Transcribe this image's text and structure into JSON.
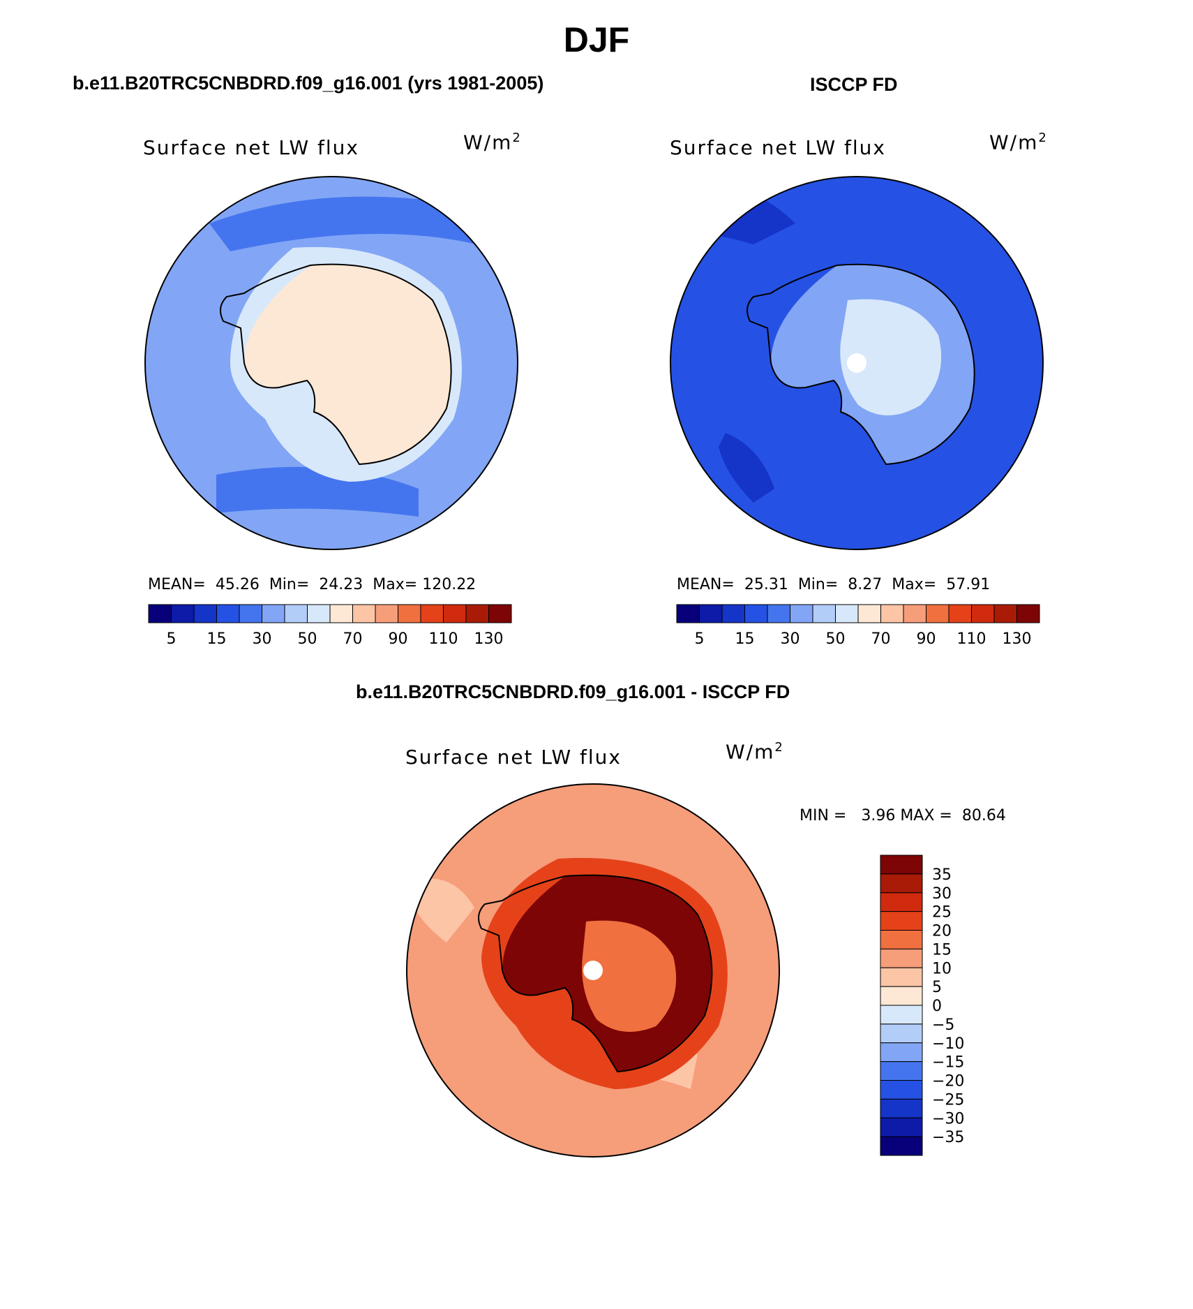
{
  "page_title": "DJF",
  "colors": {
    "seq_scale": [
      "#08007a",
      "#0d1ba8",
      "#1534c8",
      "#2552e4",
      "#4575ee",
      "#82a6f5",
      "#b3cdf9",
      "#d8e8fb",
      "#fde8d5",
      "#fbc5a6",
      "#f69d7a",
      "#f0703f",
      "#e5421a",
      "#d02a0f",
      "#aa1b07",
      "#7d0505"
    ],
    "diff_scale": [
      "#08007a",
      "#0d1ba8",
      "#1534c8",
      "#2552e4",
      "#4575ee",
      "#82a6f5",
      "#b3cdf9",
      "#d8e8fb",
      "#fde8d5",
      "#fbc5a6",
      "#f69d7a",
      "#f0703f",
      "#e5421a",
      "#d02a0f",
      "#aa1b07",
      "#7d0505"
    ],
    "coast": "#000000",
    "pole_marker": "#ffffff"
  },
  "chart_data": [
    {
      "type": "heatmap",
      "projection": "south-polar-stereographic",
      "panel_title": "b.e11.B20TRC5CNBDRD.f09_g16.001 (yrs 1981-2005)",
      "left_label": "Surface net LW flux",
      "units_label": "W/m",
      "units_sup": "2",
      "stats": {
        "mean_label": "MEAN=",
        "mean": "45.26",
        "min_label": "Min=",
        "min": "24.23",
        "max_label": "Max=",
        "max": "120.22"
      },
      "levels": [
        5,
        10,
        15,
        20,
        30,
        40,
        50,
        60,
        70,
        80,
        90,
        100,
        110,
        120,
        130
      ],
      "tick_labels": [
        "5",
        "15",
        "30",
        "50",
        "70",
        "90",
        "110",
        "130"
      ],
      "ocean_color_index": 5,
      "land_color_index": 8
    },
    {
      "type": "heatmap",
      "projection": "south-polar-stereographic",
      "panel_title": "ISCCP FD",
      "left_label": "Surface net LW flux",
      "units_label": "W/m",
      "units_sup": "2",
      "stats": {
        "mean_label": "MEAN=",
        "mean": "25.31",
        "min_label": "Min=",
        "min": "8.27",
        "max_label": "Max=",
        "max": "57.91"
      },
      "levels": [
        5,
        10,
        15,
        20,
        30,
        40,
        50,
        60,
        70,
        80,
        90,
        100,
        110,
        120,
        130
      ],
      "tick_labels": [
        "5",
        "15",
        "30",
        "50",
        "70",
        "90",
        "110",
        "130"
      ],
      "ocean_color_index": 3,
      "land_color_index": 6
    },
    {
      "type": "heatmap",
      "projection": "south-polar-stereographic",
      "panel_title": "b.e11.B20TRC5CNBDRD.f09_g16.001 - ISCCP FD",
      "left_label": "Surface net LW flux",
      "units_label": "W/m",
      "units_sup": "2",
      "stats": {
        "min_label": "MIN =",
        "min": "3.96",
        "max_label": "MAX =",
        "max": "80.64"
      },
      "levels": [
        -35,
        -30,
        -25,
        -20,
        -15,
        -10,
        -5,
        0,
        5,
        10,
        15,
        20,
        25,
        30,
        35
      ],
      "tick_labels": [
        "35",
        "30",
        "25",
        "20",
        "15",
        "10",
        "5",
        "0",
        "−5",
        "−10",
        "−15",
        "−20",
        "−25",
        "−30",
        "−35"
      ],
      "ocean_color_index": 10,
      "land_color_index": 15
    }
  ]
}
